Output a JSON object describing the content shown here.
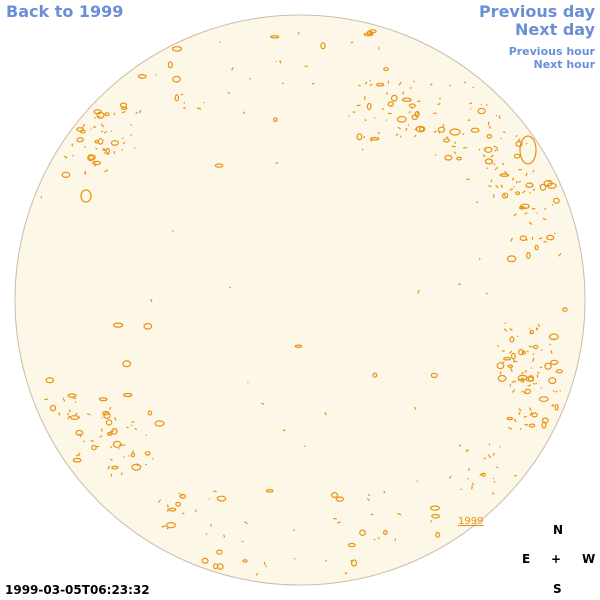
{
  "nav": {
    "back": "Back to 1999",
    "previous_day": "Previous day",
    "next_day": "Next day",
    "previous_hour": "Previous hour",
    "next_hour": "Next hour"
  },
  "compass": {
    "n": "N",
    "e": "E",
    "center": "+",
    "w": "W",
    "s": "S"
  },
  "timestamp": "1999-03-05T06:23:32",
  "stamp_year": "1999",
  "colors": {
    "disk_fill": "#fdf7e8",
    "disk_stroke": "#c9bca7",
    "contour": "#e8920f",
    "link": "#6a8fd8"
  }
}
